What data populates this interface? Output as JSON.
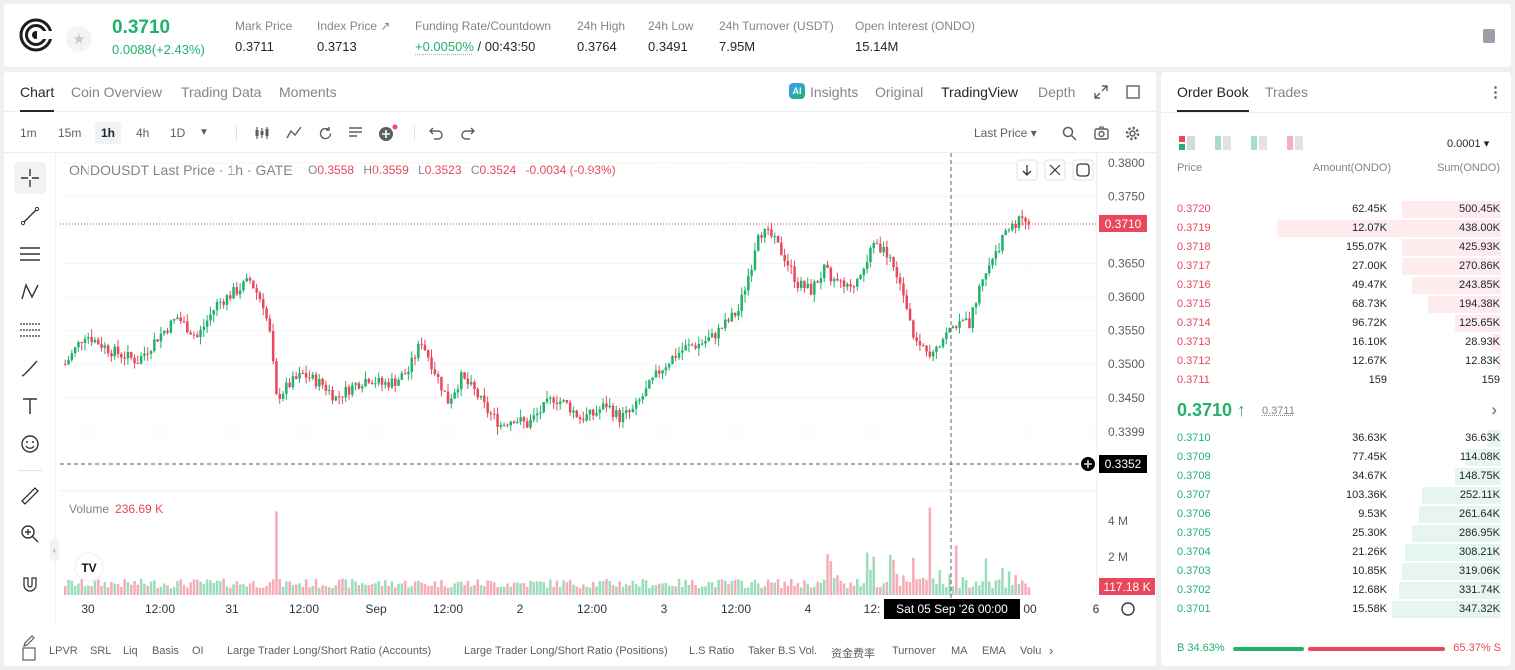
{
  "header": {
    "last_price": "0.3710",
    "change": "0.0088(+2.43%)",
    "stats": [
      {
        "label": "Mark Price",
        "value": "0.3711"
      },
      {
        "label": "Index Price ↗",
        "value": "0.3713"
      },
      {
        "label": "Funding Rate/Countdown",
        "value_green": "+0.0050%",
        "value_rest": "/ 00:43:50"
      },
      {
        "label": "24h High",
        "value": "0.3764"
      },
      {
        "label": "24h Low",
        "value": "0.3491"
      },
      {
        "label": "24h Turnover (USDT)",
        "value": "7.95M"
      },
      {
        "label": "Open Interest (ONDO)",
        "value": "15.14M"
      }
    ]
  },
  "chart_tabs": {
    "left": [
      "Chart",
      "Coin Overview",
      "Trading Data",
      "Moments"
    ],
    "right": {
      "insights": "Insights",
      "original": "Original",
      "tradingview": "TradingView",
      "depth": "Depth",
      "ai_badge": "AI"
    }
  },
  "toolbar": {
    "timeframes": [
      "1m",
      "15m",
      "1h",
      "4h",
      "1D"
    ],
    "price_source": "Last Price ▾"
  },
  "chart": {
    "symbol": "ONDOUSDT Last Price",
    "interval": "1h",
    "exchange": "GATE",
    "ohlc": {
      "O": "0.3558",
      "H": "0.3559",
      "L": "0.3523",
      "C": "0.3524",
      "chg": "-0.0034 (-0.93%)"
    },
    "price_ticks": [
      "0.3800",
      "0.3750",
      "0.3650",
      "0.3600",
      "0.3550",
      "0.3500",
      "0.3450",
      "0.3399"
    ],
    "last_price_tag": "0.3710",
    "crosshair_tag": "0.3352",
    "volume_label": "Volume",
    "volume_value": "236.69 K",
    "volume_ticks": [
      "4 M",
      "2 M"
    ],
    "volume_tag": "117.18 K",
    "time_ticks": [
      "30",
      "12:00",
      "31",
      "12:00",
      "Sep",
      "12:00",
      "2",
      "12:00",
      "3",
      "12:00",
      "4",
      "12:",
      "00",
      "6"
    ],
    "crosshair_time": "Sat 05 Sep '26   00:00",
    "tv_logo": "TV"
  },
  "indicators": [
    "LPVR",
    "SRL",
    "Liq",
    "Basis",
    "OI",
    "Large Trader Long/Short Ratio (Accounts)",
    "Large Trader Long/Short Ratio (Positions)",
    "L.S Ratio",
    "Taker B.S Vol.",
    "资金费率",
    "Turnover",
    "MA",
    "EMA",
    "Volu"
  ],
  "orderbook": {
    "tabs": [
      "Order Book",
      "Trades"
    ],
    "precision": "0.0001 ▾",
    "headers": {
      "price": "Price",
      "amount": "Amount(ONDO)",
      "sum": "Sum(ONDO)"
    },
    "asks": [
      {
        "price": "0.3720",
        "amount": "62.45K",
        "sum": "500.45K",
        "depth": 0.3
      },
      {
        "price": "0.3719",
        "amount": "12.07K",
        "sum": "438.00K",
        "depth": 0.68
      },
      {
        "price": "0.3718",
        "amount": "155.07K",
        "sum": "425.93K",
        "depth": 0.3
      },
      {
        "price": "0.3717",
        "amount": "27.00K",
        "sum": "270.86K",
        "depth": 0.3
      },
      {
        "price": "0.3716",
        "amount": "49.47K",
        "sum": "243.85K",
        "depth": 0.27
      },
      {
        "price": "0.3715",
        "amount": "68.73K",
        "sum": "194.38K",
        "depth": 0.22
      },
      {
        "price": "0.3714",
        "amount": "96.72K",
        "sum": "125.65K",
        "depth": 0.14
      },
      {
        "price": "0.3713",
        "amount": "16.10K",
        "sum": "28.93K",
        "depth": 0.03
      },
      {
        "price": "0.3712",
        "amount": "12.67K",
        "sum": "12.83K",
        "depth": 0.01
      },
      {
        "price": "0.3711",
        "amount": "159",
        "sum": "159",
        "depth": 0.0
      }
    ],
    "mid": {
      "price": "0.3710 ↑",
      "mark": "0.3711"
    },
    "bids": [
      {
        "price": "0.3710",
        "amount": "36.63K",
        "sum": "36.63K",
        "depth": 0.04
      },
      {
        "price": "0.3709",
        "amount": "77.45K",
        "sum": "114.08K",
        "depth": 0.11
      },
      {
        "price": "0.3708",
        "amount": "34.67K",
        "sum": "148.75K",
        "depth": 0.14
      },
      {
        "price": "0.3707",
        "amount": "103.36K",
        "sum": "252.11K",
        "depth": 0.24
      },
      {
        "price": "0.3706",
        "amount": "9.53K",
        "sum": "261.64K",
        "depth": 0.25
      },
      {
        "price": "0.3705",
        "amount": "25.30K",
        "sum": "286.95K",
        "depth": 0.27
      },
      {
        "price": "0.3704",
        "amount": "21.26K",
        "sum": "308.21K",
        "depth": 0.29
      },
      {
        "price": "0.3703",
        "amount": "10.85K",
        "sum": "319.06K",
        "depth": 0.3
      },
      {
        "price": "0.3702",
        "amount": "12.68K",
        "sum": "331.74K",
        "depth": 0.31
      },
      {
        "price": "0.3701",
        "amount": "15.58K",
        "sum": "347.32K",
        "depth": 0.33
      }
    ],
    "buy_ratio": "B 34.63%",
    "sell_ratio": "65.37% S",
    "buy_fraction": 0.3463
  },
  "colors": {
    "up": "#20b26c",
    "down": "#e9475b",
    "text": "#202630",
    "muted": "#81858c"
  }
}
